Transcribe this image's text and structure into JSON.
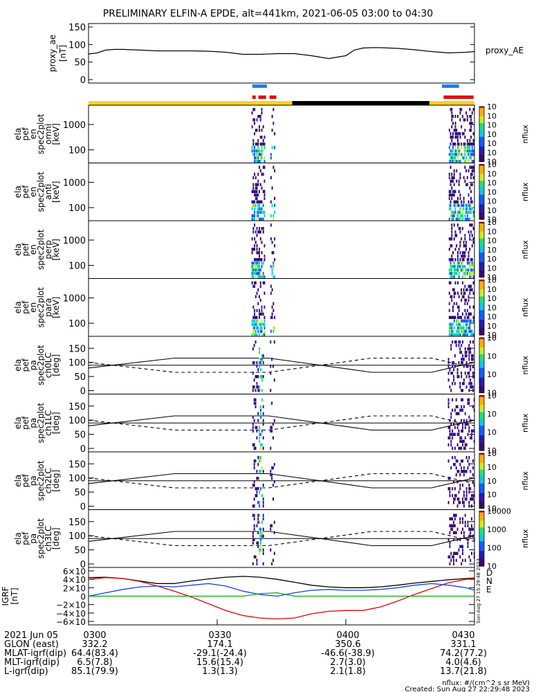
{
  "title": "PRELIMINARY ELFIN-A EPDE, alt=441km, 2021-06-05 03:00 to 04:30",
  "time_range_min": [
    0,
    90
  ],
  "event_min": [
    38,
    43
  ],
  "proxy_ae": {
    "ylabel": "proxy_ae",
    "unit": "[nT]",
    "legend": "proxy_AE",
    "yticks": [
      "150",
      "100",
      "50",
      "0"
    ],
    "chart_data": {
      "type": "line",
      "x": [
        0,
        2,
        4,
        6,
        8,
        12,
        16,
        20,
        24,
        28,
        32,
        36,
        40,
        44,
        48,
        52,
        56,
        60,
        62,
        64,
        66,
        68,
        72,
        76,
        80,
        84,
        88,
        90
      ],
      "y": [
        73,
        76,
        84,
        86,
        86,
        84,
        82,
        82,
        82,
        81,
        78,
        72,
        72,
        74,
        74,
        68,
        60,
        68,
        84,
        90,
        91,
        91,
        89,
        85,
        80,
        76,
        78,
        80
      ],
      "ylim": [
        0,
        150
      ]
    }
  },
  "bars": {
    "blue_segments": [
      [
        38.2,
        41.6
      ],
      [
        82.4,
        86.4
      ]
    ],
    "red_segments": [
      [
        38.2,
        39.0
      ],
      [
        39.6,
        41.4
      ],
      [
        42.2,
        43.8
      ],
      [
        82.8,
        89.8
      ]
    ],
    "status_segments": [
      {
        "from": 0,
        "to": 47.5,
        "color": "#ffd21e"
      },
      {
        "from": 47.5,
        "to": 79.5,
        "color": "#000000"
      },
      {
        "from": 79.5,
        "to": 90,
        "color": "#ffd21e"
      }
    ]
  },
  "spec_panels": [
    {
      "labels": [
        "ela",
        "pef",
        "en",
        "spec2plot",
        "omni",
        "[keV]"
      ],
      "yticks": [
        "1000",
        "100"
      ],
      "cb_ticks": [
        "10<sup>7</sup>",
        "10<sup>6</sup>",
        "10<sup>5</sup>",
        "10<sup>4</sup>",
        "10<sup>3</sup>",
        "10<sup>2</sup>",
        "10<sup>1</sup>"
      ],
      "cb_label": "nflux"
    },
    {
      "labels": [
        "ela",
        "pef",
        "en",
        "spec2plot",
        "anti",
        "[keV]"
      ],
      "yticks": [
        "1000",
        "100"
      ],
      "cb_ticks": [
        "10<sup>7</sup>",
        "10<sup>6</sup>",
        "10<sup>5</sup>",
        "10<sup>4</sup>",
        "10<sup>3</sup>",
        "10<sup>2</sup>",
        "10<sup>1</sup>"
      ],
      "cb_label": "nflux"
    },
    {
      "labels": [
        "ela",
        "pef",
        "en",
        "spec2plot",
        "perp",
        "[keV]"
      ],
      "yticks": [
        "1000",
        "100"
      ],
      "cb_ticks": [
        "10<sup>7</sup>",
        "10<sup>6</sup>",
        "10<sup>5</sup>",
        "10<sup>4</sup>",
        "10<sup>3</sup>",
        "10<sup>2</sup>",
        "10<sup>1</sup>"
      ],
      "cb_label": "nflux"
    },
    {
      "labels": [
        "ela",
        "pef",
        "en",
        "spec2plot",
        "para",
        "[keV]"
      ],
      "yticks": [
        "1000",
        "100"
      ],
      "cb_ticks": [
        "10<sup>7</sup>",
        "10<sup>6</sup>",
        "10<sup>5</sup>",
        "10<sup>4</sup>",
        "10<sup>3</sup>",
        "10<sup>2</sup>",
        "10<sup>1</sup>"
      ],
      "cb_label": "nflux"
    }
  ],
  "pa_panels": [
    {
      "labels": [
        "ela",
        "pef",
        "pa",
        "spec2plot",
        "ch0LC",
        "[deg]"
      ],
      "yticks": [
        "150",
        "100",
        "50",
        "0"
      ],
      "cb_ticks": [
        "10<sup>7</sup>",
        "10<sup>6</sup>",
        "10<sup>5</sup>",
        "10<sup>4</sup>"
      ],
      "cb_label": "nflux"
    },
    {
      "labels": [
        "ela",
        "pef",
        "pa",
        "spec2plot",
        "ch1LC",
        "[deg]"
      ],
      "yticks": [
        "150",
        "100",
        "50",
        "0"
      ],
      "cb_ticks": [
        "10<sup>6</sup>",
        "10<sup>5</sup>",
        "10<sup>4</sup>",
        "10<sup>3</sup>"
      ],
      "cb_label": "nflux"
    },
    {
      "labels": [
        "ela",
        "pef",
        "pa",
        "spec2plot",
        "ch2LC",
        "[deg]"
      ],
      "yticks": [
        "150",
        "100",
        "50",
        "0"
      ],
      "cb_ticks": [
        "10<sup>6</sup>",
        "10<sup>5</sup>",
        "10<sup>4</sup>",
        "10<sup>3</sup>",
        "10<sup>2</sup>"
      ],
      "cb_label": "nflux"
    },
    {
      "labels": [
        "ela",
        "pef",
        "pa",
        "spec2plot",
        "ch3LC",
        "[deg]"
      ],
      "yticks": [
        "150",
        "100",
        "50",
        "0"
      ],
      "cb_ticks": [
        "10000",
        "1000",
        "100",
        "10"
      ],
      "cb_label": "nflux"
    }
  ],
  "pa_lines": {
    "solid_x": [
      0,
      20,
      42,
      66,
      80,
      90
    ],
    "solid_y": [
      80,
      115,
      115,
      65,
      65,
      100
    ],
    "dashed_x": [
      0,
      20,
      42,
      66,
      80,
      90
    ],
    "dashed_y": [
      100,
      65,
      65,
      115,
      115,
      80
    ],
    "ref_y": 90
  },
  "igrf": {
    "ylabel": "IGRF",
    "unit": "[nT]",
    "yticks": [
      "6×10<sup>4</sup>",
      "4×10<sup>4</sup>",
      "2×10<sup>4</sup>",
      "0",
      "−2×10<sup>4</sup>",
      "−4×10<sup>4</sup>",
      "−6×10<sup>4</sup>"
    ],
    "legend": [
      {
        "label": "D",
        "color": "#e00000"
      },
      {
        "label": "N",
        "color": "#1040ff"
      },
      {
        "label": "E",
        "color": "#00b000"
      }
    ],
    "chart_data": {
      "type": "line",
      "x": [
        0,
        4,
        8,
        12,
        16,
        20,
        24,
        28,
        32,
        36,
        40,
        44,
        48,
        52,
        56,
        60,
        64,
        68,
        72,
        76,
        80,
        84,
        88,
        90
      ],
      "series": [
        {
          "name": "total",
          "y": [
            44000,
            45000,
            42000,
            36000,
            30000,
            30000,
            36000,
            41000,
            45000,
            47000,
            45000,
            40000,
            33000,
            26000,
            22000,
            20000,
            20000,
            22000,
            26000,
            31000,
            35000,
            39000,
            42000,
            43000
          ]
        },
        {
          "name": "D",
          "y": [
            40000,
            44000,
            42000,
            35000,
            24000,
            12000,
            -2000,
            -18000,
            -34000,
            -46000,
            -52000,
            -54000,
            -52000,
            -42000,
            -36000,
            -34000,
            -34000,
            -26000,
            -12000,
            4000,
            18000,
            32000,
            40000,
            42000
          ]
        },
        {
          "name": "N",
          "y": [
            0,
            8000,
            16000,
            22000,
            24000,
            22000,
            26000,
            30000,
            24000,
            12000,
            4000,
            0,
            8000,
            14000,
            16000,
            14000,
            14000,
            16000,
            20000,
            26000,
            30000,
            26000,
            20000,
            14000
          ]
        },
        {
          "name": "E",
          "y": [
            0,
            0,
            0,
            0,
            0,
            0,
            0,
            0,
            0,
            0,
            6000,
            8000,
            0,
            0,
            0,
            0,
            0,
            0,
            0,
            0,
            0,
            0,
            0,
            0
          ]
        }
      ],
      "ylim": [
        -60000,
        60000
      ]
    }
  },
  "ephemeris": {
    "date": "2021 Jun 05",
    "times": [
      "0300",
      "0330",
      "0400",
      "0430"
    ],
    "rows": [
      {
        "label": "GLON (east)",
        "values": [
          "332.2",
          "174.1",
          "350.6",
          "331.1"
        ]
      },
      {
        "label": "MLAT-igrf(dip)",
        "values": [
          "64.4(83.4)",
          "-29.1(-24.4)",
          "-46.6(-38.9)",
          "74.2(77.2)"
        ]
      },
      {
        "label": "MLT-igrf(dip)",
        "values": [
          "6.5(7.8)",
          "15.6(15.4)",
          "2.7(3.0)",
          "4.0(4.6)"
        ]
      },
      {
        "label": "L-igrf(dip)",
        "values": [
          "85.1(79.9)",
          "1.3(1.3)",
          "2.1(1.8)",
          "13.7(21.8)"
        ]
      }
    ]
  },
  "footer": {
    "unit_note": "nflux: #/(cm^2 s sr MeV)",
    "created": "Created: Sun Aug 27 22:29:48 2023",
    "side_stamp": "Sun Aug 27 15:29:48 2023"
  }
}
